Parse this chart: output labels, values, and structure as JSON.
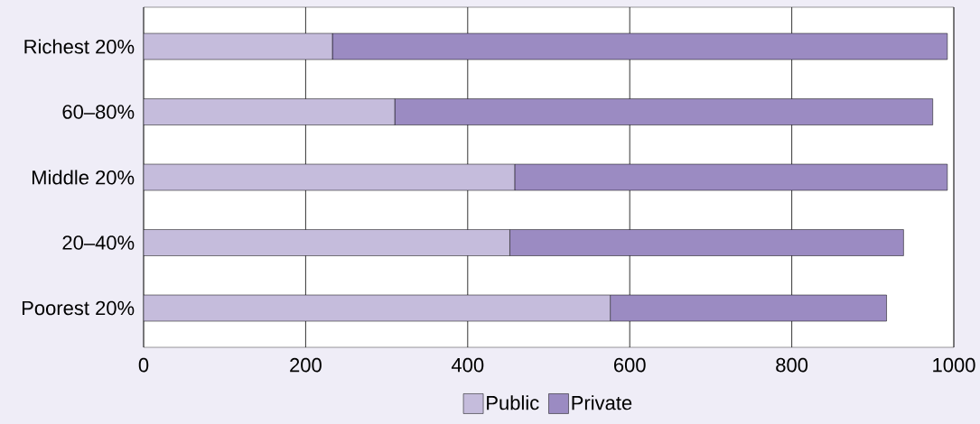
{
  "chart_data": {
    "type": "bar",
    "orientation": "horizontal",
    "stacked": true,
    "categories": [
      "Richest 20%",
      "60–80%",
      "Middle 20%",
      "20–40%",
      "Poorest 20%"
    ],
    "series": [
      {
        "name": "Public",
        "color": "#c5bcdc",
        "values": [
          233,
          310,
          458,
          452,
          576
        ]
      },
      {
        "name": "Private",
        "color": "#9b8bc2",
        "values": [
          759,
          664,
          534,
          486,
          341
        ]
      }
    ],
    "xlim": [
      0,
      1000
    ],
    "xticks": [
      0,
      200,
      400,
      600,
      800,
      1000
    ],
    "grid": "x",
    "legend": "bottom"
  }
}
